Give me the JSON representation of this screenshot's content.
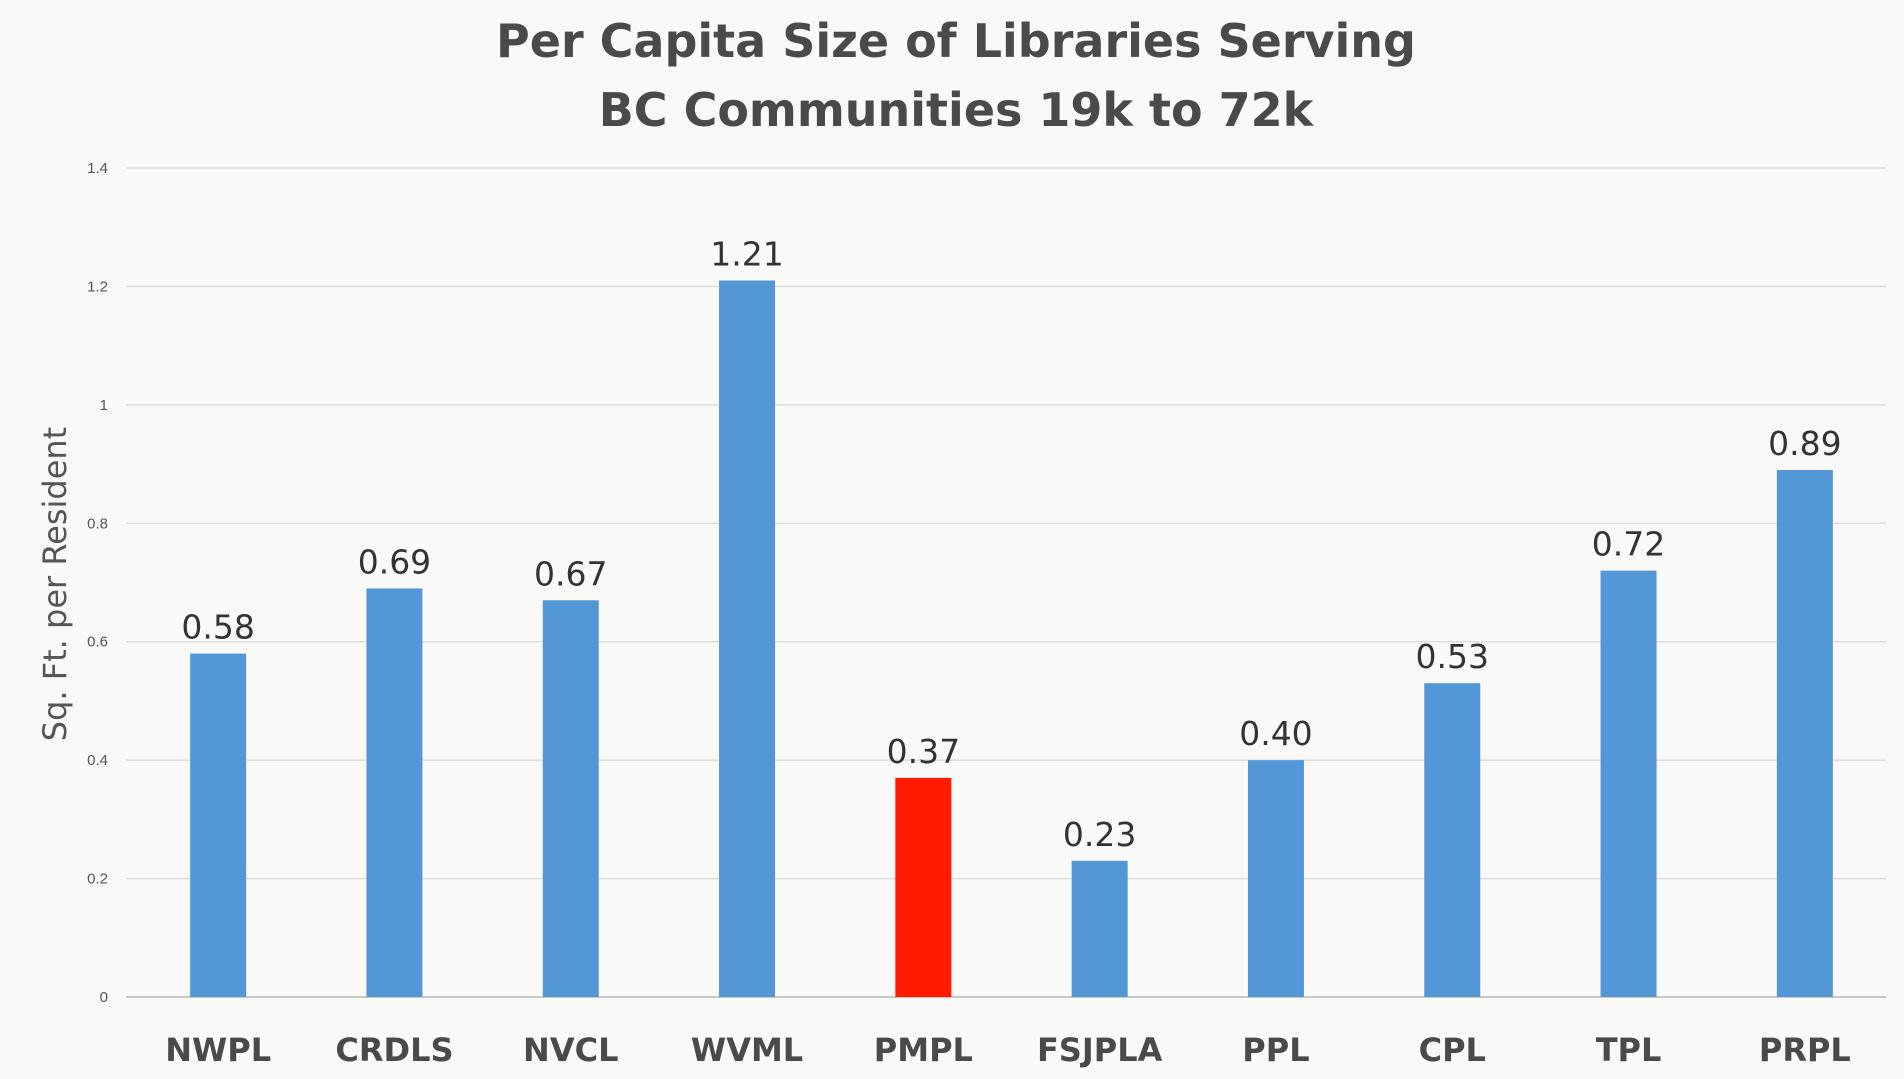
{
  "chart_data": {
    "type": "bar",
    "title_lines": [
      "Per Capita Size of Libraries Serving",
      "BC Communities 19k to 72k"
    ],
    "xlabel": "",
    "ylabel": "Sq. Ft. per Resident",
    "ylim": [
      0,
      1.4
    ],
    "yticks": [
      {
        "value": 0,
        "label": "0"
      },
      {
        "value": 0.2,
        "label": "0.2"
      },
      {
        "value": 0.4,
        "label": "0.4"
      },
      {
        "value": 0.6,
        "label": "0.6"
      },
      {
        "value": 0.8,
        "label": "0.8"
      },
      {
        "value": 1.0,
        "label": "1"
      },
      {
        "value": 1.2,
        "label": "1.2"
      },
      {
        "value": 1.4,
        "label": "1.4"
      }
    ],
    "grid": true,
    "legend": "none",
    "categories": [
      "NWPL",
      "CRDLS",
      "NVCL",
      "WVML",
      "PMPL",
      "FSJPLA",
      "PPL",
      "CPL",
      "TPL",
      "PRPL"
    ],
    "values": [
      0.58,
      0.69,
      0.67,
      1.21,
      0.37,
      0.23,
      0.4,
      0.53,
      0.72,
      0.89
    ],
    "data_labels": [
      "0.58",
      "0.69",
      "0.67",
      "1.21",
      "0.37",
      "0.23",
      "0.40",
      "0.53",
      "0.72",
      "0.89"
    ],
    "bar_colors": [
      "#5497d6",
      "#5497d6",
      "#5497d6",
      "#5497d6",
      "#ff1a00",
      "#5497d6",
      "#5497d6",
      "#5497d6",
      "#5497d6",
      "#5497d6"
    ]
  }
}
